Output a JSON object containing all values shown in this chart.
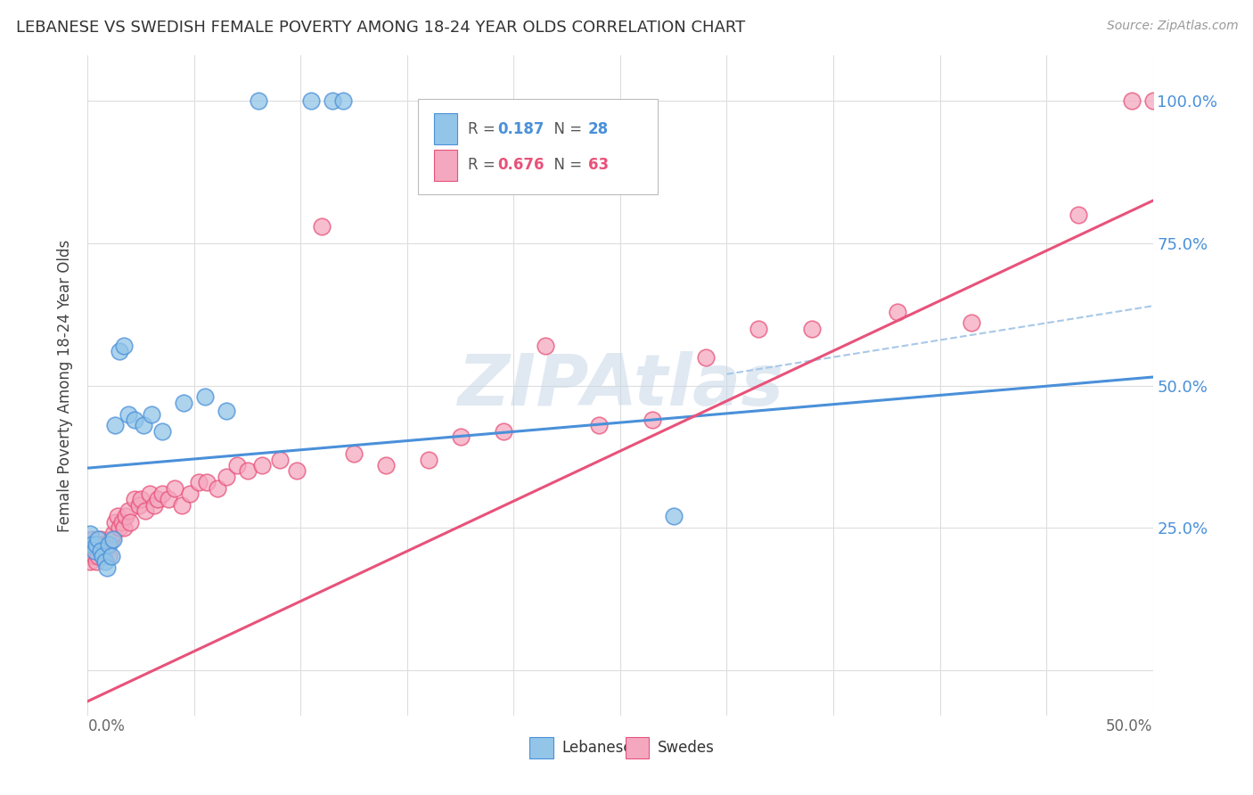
{
  "title": "LEBANESE VS SWEDISH FEMALE POVERTY AMONG 18-24 YEAR OLDS CORRELATION CHART",
  "source": "Source: ZipAtlas.com",
  "ylabel": "Female Poverty Among 18-24 Year Olds",
  "xlim": [
    0.0,
    0.5
  ],
  "ylim": [
    -0.08,
    1.08
  ],
  "legend_label1": "Lebanese",
  "legend_label2": "Swedes",
  "color_lebanese": "#92C5E8",
  "color_swedes": "#F4A8C0",
  "color_line_lebanese": "#4A90D9",
  "color_line_swedes": "#E8527A",
  "color_line_dashed": "#A8C8E8",
  "watermark": "ZIPAtlas",
  "watermark_color": "#C8D8E8",
  "leb_r": "0.187",
  "leb_n": "28",
  "swe_r": "0.676",
  "swe_n": "63",
  "leb_line_x0": 0.0,
  "leb_line_y0": 0.355,
  "leb_line_x1": 0.5,
  "leb_line_y1": 0.515,
  "swe_line_x0": 0.0,
  "swe_line_y0": -0.055,
  "swe_line_x1": 0.5,
  "swe_line_y1": 0.825,
  "dash_line_x0": 0.3,
  "dash_line_y0": 0.52,
  "dash_line_x1": 0.5,
  "dash_line_y1": 0.64,
  "lebanese_x": [
    0.001,
    0.002,
    0.003,
    0.004,
    0.005,
    0.006,
    0.007,
    0.008,
    0.009,
    0.01,
    0.011,
    0.012,
    0.013,
    0.015,
    0.017,
    0.019,
    0.022,
    0.026,
    0.03,
    0.035,
    0.045,
    0.055,
    0.065,
    0.08,
    0.105,
    0.115,
    0.12,
    0.275
  ],
  "lebanese_y": [
    0.24,
    0.22,
    0.21,
    0.22,
    0.23,
    0.21,
    0.2,
    0.19,
    0.18,
    0.22,
    0.2,
    0.23,
    0.43,
    0.56,
    0.57,
    0.45,
    0.44,
    0.43,
    0.45,
    0.42,
    0.47,
    0.48,
    0.455,
    1.0,
    1.0,
    1.0,
    1.0,
    0.27
  ],
  "swedes_x": [
    0.001,
    0.001,
    0.002,
    0.002,
    0.003,
    0.003,
    0.004,
    0.004,
    0.005,
    0.005,
    0.006,
    0.007,
    0.008,
    0.009,
    0.01,
    0.011,
    0.012,
    0.013,
    0.014,
    0.015,
    0.016,
    0.017,
    0.018,
    0.019,
    0.02,
    0.022,
    0.024,
    0.025,
    0.027,
    0.029,
    0.031,
    0.033,
    0.035,
    0.038,
    0.041,
    0.044,
    0.048,
    0.052,
    0.056,
    0.061,
    0.065,
    0.07,
    0.075,
    0.082,
    0.09,
    0.098,
    0.11,
    0.125,
    0.14,
    0.16,
    0.175,
    0.195,
    0.215,
    0.24,
    0.265,
    0.29,
    0.315,
    0.34,
    0.38,
    0.415,
    0.465,
    0.49,
    0.5
  ],
  "swedes_y": [
    0.22,
    0.19,
    0.21,
    0.23,
    0.2,
    0.22,
    0.19,
    0.21,
    0.2,
    0.22,
    0.23,
    0.22,
    0.21,
    0.22,
    0.2,
    0.23,
    0.24,
    0.26,
    0.27,
    0.25,
    0.26,
    0.25,
    0.27,
    0.28,
    0.26,
    0.3,
    0.29,
    0.3,
    0.28,
    0.31,
    0.29,
    0.3,
    0.31,
    0.3,
    0.32,
    0.29,
    0.31,
    0.33,
    0.33,
    0.32,
    0.34,
    0.36,
    0.35,
    0.36,
    0.37,
    0.35,
    0.78,
    0.38,
    0.36,
    0.37,
    0.41,
    0.42,
    0.57,
    0.43,
    0.44,
    0.55,
    0.6,
    0.6,
    0.63,
    0.61,
    0.8,
    1.0,
    1.0
  ]
}
